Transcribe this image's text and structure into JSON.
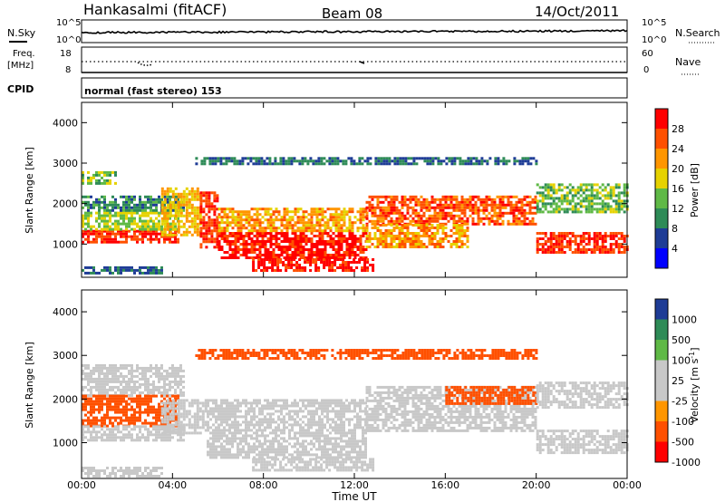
{
  "header": {
    "station": "Hankasalmi (fitACF)",
    "beam": "Beam 08",
    "date": "14/Oct/2011"
  },
  "panels": {
    "nsky_label": "N.Sky",
    "nsearch_label": "N.Search",
    "count_ticks": [
      "10^5",
      "10^0"
    ],
    "freq_label_line1": "Freq.",
    "freq_label_line2": "[MHz]",
    "freq_ticks": [
      "18",
      "8"
    ],
    "nave_label": "Nave",
    "nave_ticks": [
      "60",
      "0"
    ],
    "cpid_label": "CPID",
    "cpid_value": "normal (fast stereo) 153"
  },
  "colors": {
    "power_scale": [
      "#0000ff",
      "#1e3c96",
      "#2e8b57",
      "#5fb946",
      "#e6d200",
      "#ff9600",
      "#ff5000",
      "#ff0000"
    ],
    "velocity_scale": [
      "#ff0000",
      "#ff5000",
      "#ff9600",
      "#c8c8c8",
      "#c8c8c8",
      "#5fb946",
      "#2e8b57",
      "#1e3c96"
    ]
  },
  "chart_data": [
    {
      "type": "heatmap",
      "panel": "power",
      "ylabel": "Slant Range [km]",
      "ylim": [
        180,
        4500
      ],
      "y_ticks": [
        1000,
        2000,
        3000,
        4000
      ],
      "colorbar_label": "Power [dB]",
      "colorbar_ticks": [
        "28",
        "24",
        "20",
        "16",
        "12",
        "8",
        "4"
      ],
      "colorbar_range": [
        0,
        32
      ],
      "regions": [
        {
          "t0": 0.0,
          "t1": 4.2,
          "r0": 1050,
          "r1": 1350,
          "value": 28
        },
        {
          "t0": 0.0,
          "t1": 4.2,
          "r0": 1350,
          "r1": 1800,
          "value": 16
        },
        {
          "t0": 0.0,
          "t1": 4.5,
          "r0": 1800,
          "r1": 2200,
          "value": 10
        },
        {
          "t0": 0.0,
          "t1": 1.5,
          "r0": 2500,
          "r1": 2800,
          "value": 14
        },
        {
          "t0": 0.0,
          "t1": 3.5,
          "r0": 250,
          "r1": 450,
          "value": 8
        },
        {
          "t0": 3.5,
          "t1": 5.2,
          "r0": 1200,
          "r1": 2400,
          "value": 20
        },
        {
          "t0": 5.2,
          "t1": 6.0,
          "r0": 900,
          "r1": 2300,
          "value": 28
        },
        {
          "t0": 6.0,
          "t1": 12.5,
          "r0": 650,
          "r1": 1300,
          "value": 30
        },
        {
          "t0": 6.0,
          "t1": 12.5,
          "r0": 1300,
          "r1": 1900,
          "value": 22
        },
        {
          "t0": 7.5,
          "t1": 12.8,
          "r0": 350,
          "r1": 650,
          "value": 30
        },
        {
          "t0": 12.5,
          "t1": 20.0,
          "r0": 1500,
          "r1": 2200,
          "value": 26
        },
        {
          "t0": 12.5,
          "t1": 17.0,
          "r0": 900,
          "r1": 1500,
          "value": 22
        },
        {
          "t0": 20.0,
          "t1": 24.0,
          "r0": 800,
          "r1": 1300,
          "value": 28
        },
        {
          "t0": 20.0,
          "t1": 24.0,
          "r0": 1800,
          "r1": 2500,
          "value": 14
        },
        {
          "t0": 5.0,
          "t1": 20.0,
          "r0": 2950,
          "r1": 3150,
          "value": 8
        }
      ]
    },
    {
      "type": "heatmap",
      "panel": "velocity",
      "ylabel": "Slant Range [km]",
      "xlabel": "Time UT",
      "ylim": [
        180,
        4500
      ],
      "y_ticks": [
        1000,
        2000,
        3000,
        4000
      ],
      "x_ticks": [
        "00:00",
        "04:00",
        "08:00",
        "12:00",
        "16:00",
        "20:00",
        "00:00"
      ],
      "x_range_hours": [
        0,
        24
      ],
      "colorbar_label": "Velocity [m s^-1]",
      "colorbar_ticks": [
        "1000",
        "500",
        "100",
        "25",
        "-25",
        "-100",
        "-500",
        "-1000"
      ],
      "regions": [
        {
          "t0": 0.0,
          "t1": 4.5,
          "r0": 2100,
          "r1": 2800,
          "value": 0
        },
        {
          "t0": 0.0,
          "t1": 4.2,
          "r0": 1400,
          "r1": 2100,
          "value": -150
        },
        {
          "t0": 0.0,
          "t1": 4.5,
          "r0": 1050,
          "r1": 1400,
          "value": 0
        },
        {
          "t0": 3.5,
          "t1": 5.5,
          "r0": 1200,
          "r1": 2000,
          "value": 0
        },
        {
          "t0": 5.5,
          "t1": 12.5,
          "r0": 650,
          "r1": 2000,
          "value": 0
        },
        {
          "t0": 7.5,
          "t1": 12.8,
          "r0": 350,
          "r1": 650,
          "value": 0
        },
        {
          "t0": 12.5,
          "t1": 20.0,
          "r0": 1300,
          "r1": 2300,
          "value": 0
        },
        {
          "t0": 16.0,
          "t1": 20.0,
          "r0": 1900,
          "r1": 2300,
          "value": -150
        },
        {
          "t0": 20.0,
          "t1": 24.0,
          "r0": 800,
          "r1": 1300,
          "value": 0
        },
        {
          "t0": 20.0,
          "t1": 24.0,
          "r0": 1800,
          "r1": 2400,
          "value": 0
        },
        {
          "t0": 5.0,
          "t1": 20.0,
          "r0": 2950,
          "r1": 3150,
          "value": -150
        },
        {
          "t0": 0.0,
          "t1": 3.5,
          "r0": 250,
          "r1": 450,
          "value": 80
        }
      ]
    }
  ]
}
